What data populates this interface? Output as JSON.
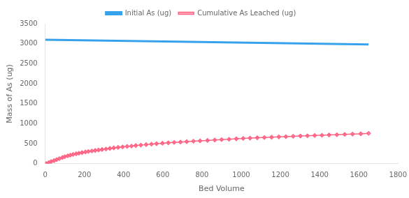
{
  "chart_data": {
    "type": "line",
    "xlabel": "Bed Volume",
    "ylabel": "Mass of As (ug)",
    "xlim": [
      0,
      1800
    ],
    "ylim": [
      0,
      3500
    ],
    "xticks": [
      0,
      200,
      400,
      600,
      800,
      1000,
      1200,
      1400,
      1600,
      1800
    ],
    "yticks": [
      0,
      500,
      1000,
      1500,
      2000,
      2500,
      3000,
      3500
    ],
    "grid": false,
    "legend": "top",
    "series": [
      {
        "name": "Initial As (ug)",
        "marker": "none",
        "x": [
          0,
          1650
        ],
        "values": [
          3100,
          2980
        ]
      },
      {
        "name": "Cumulative As Leached (ug)",
        "marker": "diamond",
        "x": [
          5,
          18,
          30,
          45,
          58,
          72,
          88,
          100,
          115,
          128,
          142,
          158,
          172,
          188,
          205,
          220,
          238,
          255,
          272,
          290,
          310,
          330,
          350,
          372,
          395,
          418,
          440,
          462,
          488,
          515,
          542,
          568,
          598,
          628,
          658,
          690,
          722,
          756,
          790,
          828,
          865,
          900,
          938,
          975,
          1010,
          1045,
          1082,
          1118,
          1155,
          1192,
          1228,
          1265,
          1302,
          1338,
          1375,
          1412,
          1448,
          1488,
          1528,
          1568,
          1610,
          1650
        ],
        "values": [
          5,
          28,
          52,
          78,
          100,
          128,
          155,
          175,
          198,
          215,
          232,
          248,
          262,
          278,
          292,
          305,
          318,
          330,
          342,
          355,
          368,
          382,
          395,
          408,
          420,
          432,
          442,
          452,
          465,
          478,
          490,
          500,
          512,
          522,
          532,
          542,
          552,
          562,
          572,
          582,
          592,
          602,
          612,
          622,
          632,
          640,
          648,
          655,
          662,
          670,
          677,
          685,
          692,
          698,
          705,
          712,
          718,
          725,
          732,
          740,
          748,
          758
        ]
      }
    ]
  }
}
